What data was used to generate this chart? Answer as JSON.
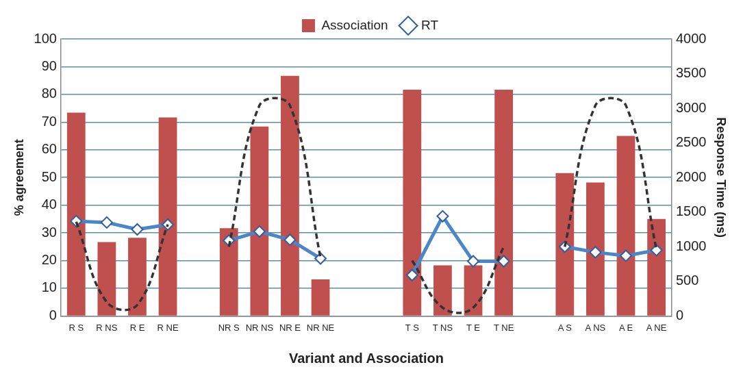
{
  "chart_data": {
    "type": "bar",
    "xlabel": "Variant and Association",
    "ylabel": "% agreement",
    "y2label": "Response Time (ms)",
    "categories": [
      "R S",
      "R NS",
      "R E",
      "R NE",
      null,
      "NR S",
      "NR NS",
      "NR E",
      "NR NE",
      null,
      null,
      "T S",
      "T NS",
      "T E",
      "T NE",
      null,
      "A S",
      "A NS",
      "A E",
      "A NE"
    ],
    "series": [
      {
        "name": "Association",
        "color": "#c0504d",
        "values": [
          73.4,
          26.7,
          28.2,
          71.7,
          null,
          31.7,
          68.4,
          86.7,
          13.2,
          null,
          null,
          81.7,
          18.3,
          18.3,
          81.7,
          null,
          51.6,
          48.2,
          65.0,
          35.0
        ]
      },
      {
        "name": "RT",
        "type": "line",
        "axis": "y2",
        "color": "#4a86c8",
        "marker": "diamond",
        "line_style": "solid",
        "values": [
          1370,
          1350,
          1250,
          1320,
          null,
          1090,
          1220,
          1100,
          830,
          null,
          null,
          590,
          1440,
          790,
          790,
          null,
          1000,
          920,
          870,
          950
        ]
      },
      {
        "type": "line",
        "color": "#333333",
        "marker": "none",
        "line_style": "dashed",
        "values": [
          34,
          5,
          4,
          33,
          null,
          25,
          76,
          76,
          21,
          null,
          null,
          20,
          3,
          3,
          25,
          null,
          25,
          76,
          76,
          24
        ]
      }
    ],
    "ylim": [
      0,
      100
    ],
    "yticks": [
      0,
      10,
      20,
      30,
      40,
      50,
      60,
      70,
      80,
      90,
      100
    ],
    "y2lim": [
      0,
      4000
    ],
    "y2ticks": [
      0,
      500,
      1000,
      1500,
      2000,
      2500,
      3000,
      3500,
      4000
    ],
    "grid": "y",
    "legend": "top"
  }
}
